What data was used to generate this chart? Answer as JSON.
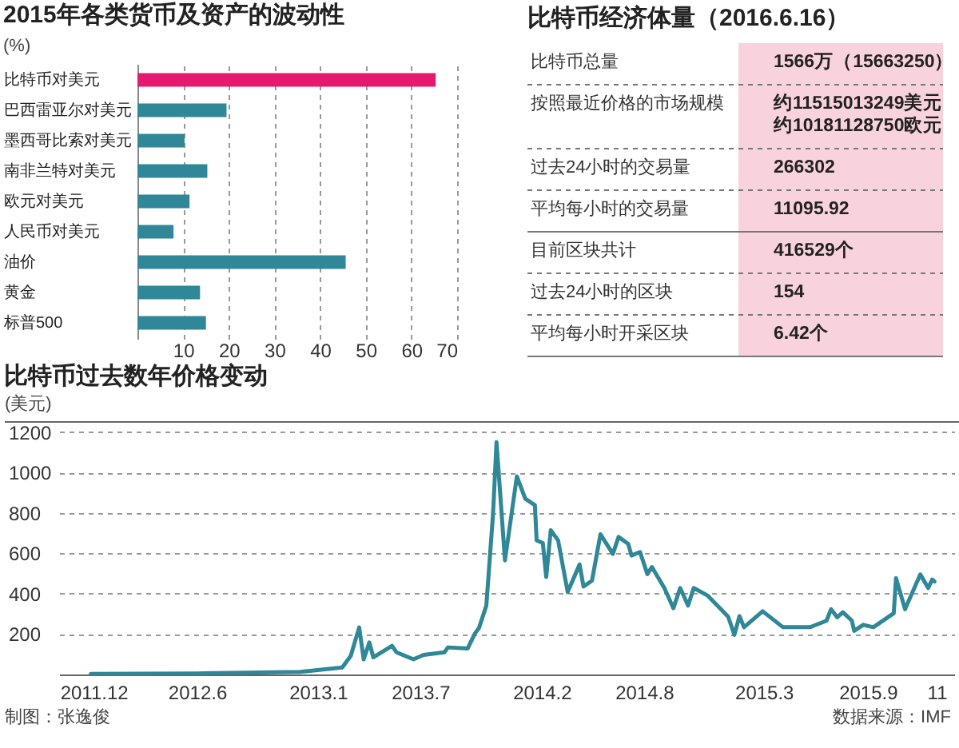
{
  "chart_data": [
    {
      "type": "bar",
      "orientation": "horizontal",
      "title": "2015年各类货币及资产的波动性",
      "xlabel": "(%)",
      "categories": [
        "比特币对美元",
        "巴西雷亚尔对美元",
        "墨西哥比索对美元",
        "南非兰特对美元",
        "欧元对美元",
        "人民币对美元",
        "油价",
        "黄金",
        "标普500"
      ],
      "values": [
        65.3,
        19.5,
        10.3,
        15.3,
        11.4,
        7.9,
        45.6,
        13.7,
        15.0
      ],
      "colors": [
        "#e5196f",
        "#2f8797",
        "#2f8797",
        "#2f8797",
        "#2f8797",
        "#2f8797",
        "#2f8797",
        "#2f8797",
        "#2f8797"
      ],
      "xlim": [
        0,
        70
      ],
      "xticks": [
        10,
        20,
        30,
        40,
        50,
        60,
        70
      ],
      "grid": "x"
    },
    {
      "type": "other",
      "title": "比特币经济体量（2016.6.16）",
      "categories": [
        "比特币总量",
        "按照最近价格的市场规模",
        "过去24小时的交易量",
        "平均每小时的交易量",
        "目前区块共计",
        "过去24小时的区块",
        "平均每小时开采区块"
      ],
      "annotations": [
        "1566万（15663250）",
        "约11515013249美元约10181128750欧元",
        "266302",
        "11095.92",
        "416529个",
        "154",
        "6.42个"
      ]
    },
    {
      "type": "line",
      "title": "比特币过去数年价格变动",
      "ylabel": "(美元)",
      "x": [
        "2011-11-26",
        "2012-06-01",
        "2012-12-01",
        "2013-02-13",
        "2013-02-28",
        "2013-03-15",
        "2013-03-23",
        "2013-04-02",
        "2013-04-09",
        "2013-05-12",
        "2013-05-20",
        "2013-06-19",
        "2013-07-07",
        "2013-08-13",
        "2013-08-19",
        "2013-09-23",
        "2013-10-06",
        "2013-10-13",
        "2013-10-26",
        "2013-11-07",
        "2013-11-13",
        "2013-11-28",
        "2013-12-19",
        "2014-01-03",
        "2014-01-20",
        "2014-01-23",
        "2014-02-03",
        "2014-02-09",
        "2014-02-17",
        "2014-03-02",
        "2014-03-19",
        "2014-04-09",
        "2014-04-16",
        "2014-05-01",
        "2014-05-16",
        "2014-06-07",
        "2014-06-17",
        "2014-07-04",
        "2014-07-10",
        "2014-07-25",
        "2014-08-07",
        "2014-08-15",
        "2014-09-06",
        "2014-09-22",
        "2014-10-04",
        "2014-10-18",
        "2014-10-28",
        "2014-11-22",
        "2014-12-28",
        "2015-01-08",
        "2015-01-17",
        "2015-01-25",
        "2015-02-27",
        "2015-04-04",
        "2015-05-22",
        "2015-06-20",
        "2015-06-28",
        "2015-07-09",
        "2015-07-19",
        "2015-08-04",
        "2015-08-08",
        "2015-08-24",
        "2015-09-11",
        "2015-10-17",
        "2015-10-21",
        "2015-11-06",
        "2015-12-03",
        "2015-12-17",
        "2015-12-24",
        "2015-12-28"
      ],
      "series": [
        {
          "color": "#2f8797",
          "values": [
            3,
            5,
            13,
            35,
            92,
            233,
            75,
            159,
            85,
            142,
            110,
            75,
            97,
            110,
            134,
            129,
            204,
            230,
            341,
            800,
            1150,
            565,
            980,
            870,
            838,
            664,
            651,
            483,
            714,
            664,
            408,
            545,
            435,
            465,
            694,
            597,
            681,
            647,
            589,
            606,
            497,
            532,
            428,
            328,
            428,
            341,
            428,
            390,
            286,
            196,
            289,
            234,
            313,
            234,
            234,
            266,
            323,
            283,
            308,
            266,
            216,
            246,
            234,
            303,
            477,
            323,
            495,
            428,
            470,
            460
          ]
        }
      ],
      "xlim": [
        "2011-10-01",
        "2016-02-01"
      ],
      "xticks": [
        {
          "value": "2011-12-01",
          "label": "2011.12"
        },
        {
          "value": "2012-06-01",
          "label": "2012.6"
        },
        {
          "value": "2013-01-01",
          "label": "2013.1"
        },
        {
          "value": "2013-07-01",
          "label": "2013.7"
        },
        {
          "value": "2014-02-01",
          "label": "2014.2"
        },
        {
          "value": "2014-08-01",
          "label": "2014.8"
        },
        {
          "value": "2015-03-01",
          "label": "2015.3"
        },
        {
          "value": "2015-09-01",
          "label": "2015.9"
        },
        {
          "value": "2016-01-01",
          "label": "11"
        }
      ],
      "ylim": [
        0,
        1250
      ],
      "yticks": [
        200,
        400,
        600,
        800,
        1000,
        1200
      ],
      "grid": "y",
      "annotations": [
        "制图：张逸俊",
        "数据来源：IMF"
      ]
    }
  ]
}
